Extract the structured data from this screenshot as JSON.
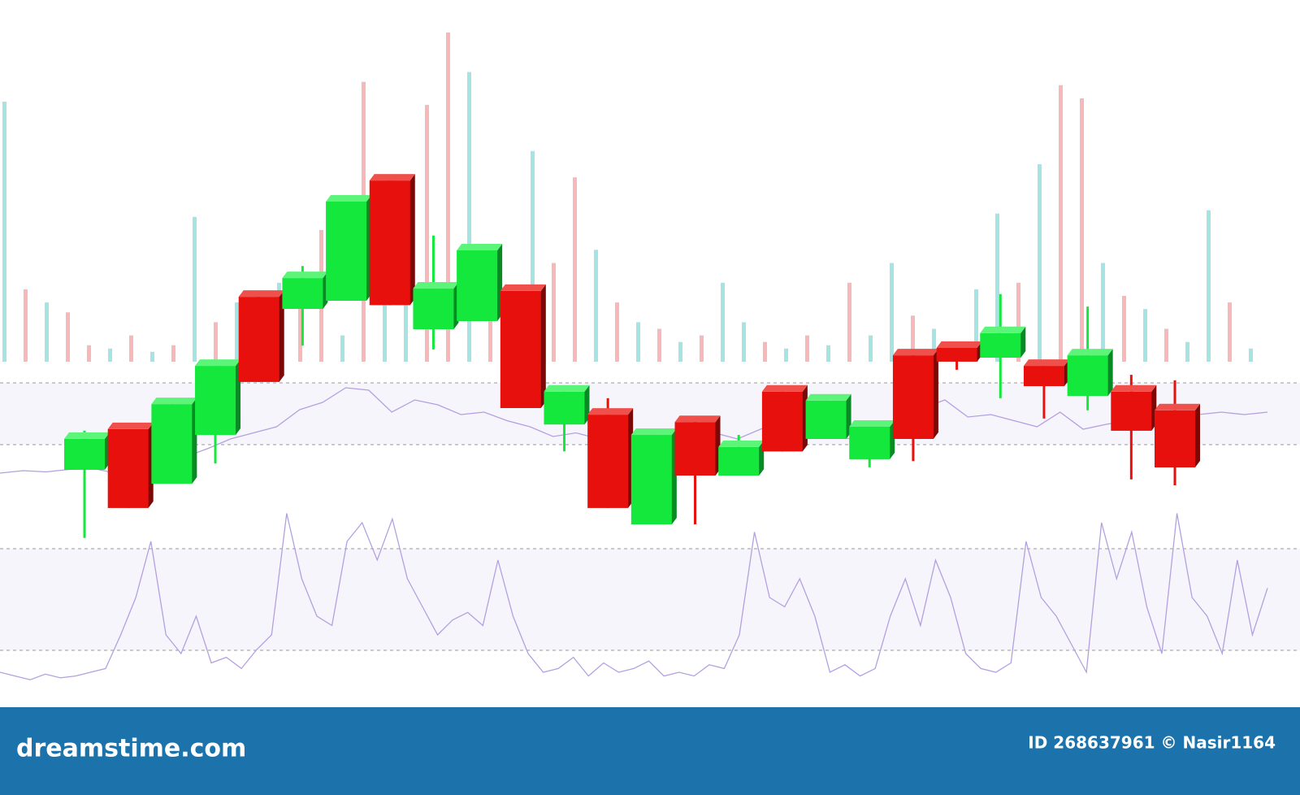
{
  "chart_data": {
    "type": "candlestick",
    "open": [
      21.3,
      31.7,
      17.7,
      30.2,
      65.6,
      62.5,
      64.6,
      95.4,
      57.3,
      59.4,
      67.1,
      32.9,
      35.4,
      7.3,
      33.5,
      19.8,
      41.3,
      29.2,
      24.0,
      50.6,
      52.5,
      50.0,
      47.9,
      40.2,
      41.3,
      36.5
    ],
    "high": [
      31.3,
      31.7,
      38.1,
      47.9,
      65.6,
      73.5,
      90.0,
      95.4,
      81.3,
      77.5,
      67.1,
      41.3,
      39.6,
      30.2,
      34.4,
      30.2,
      41.3,
      39.0,
      32.3,
      50.6,
      53.5,
      66.3,
      49.4,
      63.1,
      45.6,
      44.2
    ],
    "low": [
      3.8,
      11.5,
      17.7,
      22.9,
      43.8,
      53.1,
      64.6,
      63.5,
      52.1,
      59.4,
      37.1,
      26.0,
      11.5,
      7.3,
      7.3,
      19.8,
      26.0,
      29.2,
      21.9,
      23.5,
      46.9,
      39.6,
      34.4,
      36.5,
      18.8,
      17.3
    ],
    "close": [
      29.2,
      11.5,
      38.1,
      47.9,
      43.8,
      70.4,
      90.0,
      63.5,
      67.7,
      77.5,
      37.1,
      41.3,
      11.5,
      30.2,
      19.8,
      27.1,
      26.0,
      39.0,
      32.3,
      29.2,
      49.0,
      56.3,
      42.7,
      50.6,
      31.3,
      21.9
    ],
    "ylim": [
      0,
      100
    ],
    "up_color": "#14e83c",
    "down_color": "#e8100c",
    "volume": {
      "values": [
        79,
        22,
        18,
        15,
        5,
        4,
        8,
        3,
        5,
        44,
        12,
        18,
        14,
        24,
        20,
        40,
        8,
        85,
        36,
        25,
        78,
        100,
        88,
        22,
        16,
        64,
        30,
        56,
        34,
        18,
        12,
        10,
        6,
        8,
        24,
        12,
        6,
        4,
        8,
        5,
        24,
        8,
        30,
        14,
        10,
        6,
        22,
        45,
        24,
        60,
        84,
        80,
        30,
        20,
        16,
        10,
        6,
        46,
        18,
        4
      ],
      "colors": [
        "#a6e3e3",
        "#f6b8b8",
        "#a6e3e3",
        "#f6b8b8",
        "#f6b8b8",
        "#a6e3e3",
        "#f6b8b8",
        "#a6e3e3",
        "#f6b8b8",
        "#a6e3e3",
        "#f6b8b8",
        "#a6e3e3",
        "#f6b8b8",
        "#a6e3e3",
        "#f6b8b8",
        "#f6b8b8",
        "#a6e3e3",
        "#f6b8b8",
        "#a6e3e3",
        "#a6e3e3",
        "#f6b8b8",
        "#f6b8b8",
        "#a6e3e3",
        "#f6b8b8",
        "#a6e3e3",
        "#a6e3e3",
        "#f6b8b8",
        "#f6b8b8",
        "#a6e3e3",
        "#f6b8b8",
        "#a6e3e3",
        "#f6b8b8",
        "#a6e3e3",
        "#f6b8b8",
        "#a6e3e3",
        "#a6e3e3",
        "#f6b8b8",
        "#a6e3e3",
        "#f6b8b8",
        "#a6e3e3",
        "#f6b8b8",
        "#a6e3e3",
        "#a6e3e3",
        "#f6b8b8",
        "#a6e3e3",
        "#f6b8b8",
        "#a6e3e3",
        "#a6e3e3",
        "#f6b8b8",
        "#a6e3e3",
        "#f6b8b8",
        "#f6b8b8",
        "#a6e3e3",
        "#f6b8b8",
        "#a6e3e3",
        "#f6b8b8",
        "#a6e3e3",
        "#a6e3e3",
        "#f6b8b8",
        "#a6e3e3"
      ],
      "ylim": [
        0,
        100
      ]
    },
    "indicator": {
      "values": [
        12,
        14,
        13,
        15,
        16,
        12,
        17,
        20,
        25,
        32,
        40,
        45,
        50,
        64,
        70,
        82,
        80,
        62,
        72,
        68,
        60,
        62,
        55,
        50,
        42,
        45,
        40,
        36,
        34,
        38,
        42,
        45,
        40,
        48,
        55,
        50,
        42,
        40,
        45,
        58,
        65,
        72,
        58,
        60,
        55,
        50,
        62,
        48,
        52,
        55,
        56,
        58,
        60,
        62,
        60,
        62
      ],
      "color": "#b3a0e0",
      "ylim": [
        0,
        100
      ]
    },
    "oscillator": {
      "values": [
        10,
        8,
        6,
        9,
        7,
        8,
        10,
        12,
        30,
        50,
        80,
        30,
        20,
        40,
        15,
        18,
        12,
        22,
        30,
        95,
        60,
        40,
        35,
        80,
        90,
        70,
        92,
        60,
        45,
        30,
        38,
        42,
        35,
        70,
        40,
        20,
        10,
        12,
        18,
        8,
        15,
        10,
        12,
        16,
        8,
        10,
        8,
        14,
        12,
        30,
        85,
        50,
        45,
        60,
        40,
        10,
        14,
        8,
        12,
        40,
        60,
        35,
        70,
        50,
        20,
        12,
        10,
        15,
        80,
        50,
        40,
        25,
        10,
        90,
        60,
        85,
        45,
        20,
        95,
        50,
        40,
        20,
        70,
        30,
        55
      ],
      "color": "#b3a0e0",
      "ylim": [
        0,
        100
      ]
    }
  },
  "footer": {
    "site": "dreamstime.com",
    "credit": "ID 268637961 © Nasir1164"
  }
}
